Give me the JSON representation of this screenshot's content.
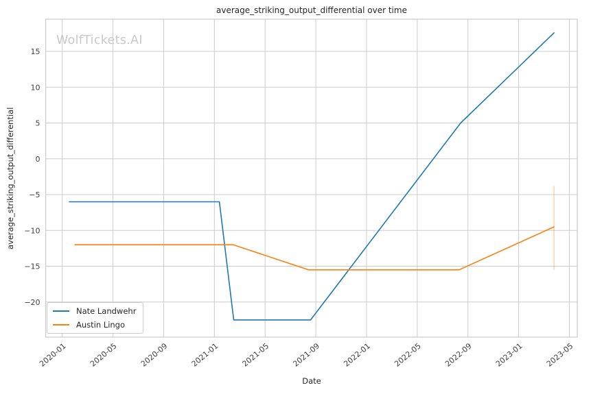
{
  "watermark": "WolfTickets.AI",
  "chart_data": {
    "type": "line",
    "title": "average_striking_output_differential over time",
    "xlabel": "Date",
    "ylabel": "average_striking_output_differential",
    "grid": true,
    "legend_position": "lower left",
    "x_tick_labels": [
      "2020-01",
      "2020-05",
      "2020-09",
      "2021-01",
      "2021-05",
      "2021-09",
      "2022-01",
      "2022-05",
      "2022-09",
      "2023-01",
      "2023-05"
    ],
    "y_ticks": [
      -20,
      -15,
      -10,
      -5,
      0,
      5,
      10,
      15
    ],
    "xlim": [
      "2019-11-22",
      "2023-05-20"
    ],
    "ylim": [
      -24.9,
      19.5
    ],
    "colors": {
      "series1": "#1f77b4",
      "series2": "#ff7f0e",
      "grid": "#cccccc",
      "tick_text": "#3d3d3d",
      "text": "#262626"
    },
    "series": [
      {
        "name": "Nate Landwehr",
        "color": "#1f77b4",
        "points": [
          [
            "2020-01-18",
            -6.0
          ],
          [
            "2021-01-13",
            -6.0
          ],
          [
            "2021-02-17",
            -22.5
          ],
          [
            "2021-08-19",
            -22.5
          ],
          [
            "2022-08-14",
            5.0
          ],
          [
            "2023-03-25",
            17.6
          ]
        ]
      },
      {
        "name": "Austin Lingo",
        "color": "#ff7f0e",
        "points": [
          [
            "2020-02-01",
            -12.0
          ],
          [
            "2021-02-16",
            -12.0
          ],
          [
            "2021-08-14",
            -15.5
          ],
          [
            "2022-08-10",
            -15.5
          ],
          [
            "2023-03-25",
            -9.5
          ]
        ],
        "last_point_error_bar": {
          "x": "2023-03-25",
          "low": -15.5,
          "high": -3.8,
          "opacity": 0.35
        }
      }
    ]
  }
}
